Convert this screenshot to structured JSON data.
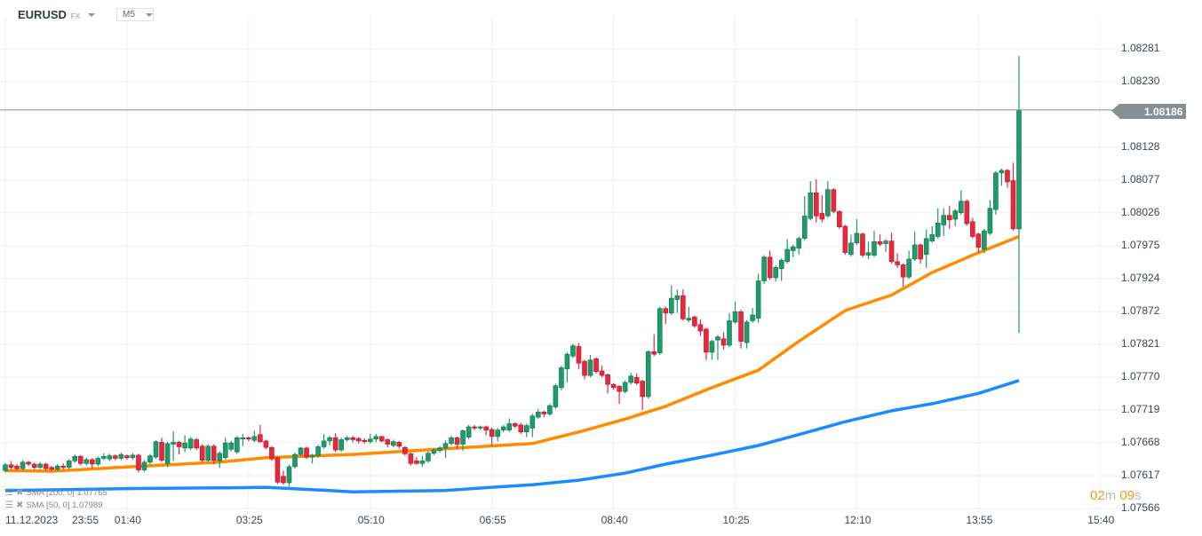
{
  "header": {
    "symbol": "EURUSD",
    "market": "FX",
    "timeframe": "M5"
  },
  "legend": [
    {
      "label": "SMA [200,  0] 1.07765"
    },
    {
      "label": "SMA [50,  0] 1.07989"
    }
  ],
  "timer": {
    "minutes": "02",
    "m": "m",
    "seconds": "09",
    "s": "s"
  },
  "colors": {
    "up": "#1e9b6a",
    "down": "#e8283d",
    "sma50": "#ff8c00",
    "sma200": "#1a8cff",
    "grid": "#eef0f2",
    "price_line": "#878f93"
  },
  "chart_data": {
    "type": "candlestick",
    "title": "EURUSD FX M5",
    "current_price": "1.08186",
    "ylim": [
      1.07566,
      1.08281
    ],
    "yticks": [
      "1.08281",
      "1.08230",
      "1.08128",
      "1.08077",
      "1.08026",
      "1.07975",
      "1.07924",
      "1.07872",
      "1.07821",
      "1.07770",
      "1.07719",
      "1.07668",
      "1.07617",
      "1.07566"
    ],
    "xticks": [
      {
        "bar": 0,
        "date": "11.12.2023",
        "label": "23:55"
      },
      {
        "bar": 21,
        "label": "01:40"
      },
      {
        "bar": 42,
        "label": "03:25"
      },
      {
        "bar": 63,
        "label": "05:10"
      },
      {
        "bar": 84,
        "label": "06:55"
      },
      {
        "bar": 105,
        "label": "08:40"
      },
      {
        "bar": 126,
        "label": "10:25"
      },
      {
        "bar": 147,
        "label": "12:10"
      },
      {
        "bar": 168,
        "label": "13:55"
      },
      {
        "bar": 189,
        "label": "15:40"
      }
    ],
    "ohlc": [
      [
        1.07625,
        1.07637,
        1.07622,
        1.07634
      ],
      [
        1.07634,
        1.0764,
        1.07627,
        1.0763
      ],
      [
        1.07632,
        1.07635,
        1.07625,
        1.07628
      ],
      [
        1.07628,
        1.07641,
        1.07625,
        1.07638
      ],
      [
        1.07638,
        1.0764,
        1.07632,
        1.07635
      ],
      [
        1.07635,
        1.07637,
        1.07627,
        1.0763
      ],
      [
        1.0763,
        1.07638,
        1.07627,
        1.07635
      ],
      [
        1.07635,
        1.07637,
        1.07625,
        1.07628
      ],
      [
        1.0763,
        1.07632,
        1.07624,
        1.07627
      ],
      [
        1.07627,
        1.07635,
        1.07624,
        1.07632
      ],
      [
        1.07632,
        1.07636,
        1.07627,
        1.0763
      ],
      [
        1.0763,
        1.07643,
        1.07627,
        1.0764
      ],
      [
        1.0764,
        1.0765,
        1.07637,
        1.07647
      ],
      [
        1.07647,
        1.07649,
        1.07633,
        1.07636
      ],
      [
        1.07636,
        1.07645,
        1.07633,
        1.07642
      ],
      [
        1.07642,
        1.07644,
        1.07628,
        1.07635
      ],
      [
        1.07635,
        1.07647,
        1.07632,
        1.07644
      ],
      [
        1.07644,
        1.07652,
        1.07641,
        1.07647
      ],
      [
        1.07643,
        1.07651,
        1.0764,
        1.07648
      ],
      [
        1.07648,
        1.0765,
        1.07641,
        1.07644
      ],
      [
        1.07644,
        1.07653,
        1.07641,
        1.0765
      ],
      [
        1.07648,
        1.0765,
        1.07642,
        1.07645
      ],
      [
        1.07645,
        1.07652,
        1.07642,
        1.07649
      ],
      [
        1.07649,
        1.07651,
        1.07622,
        1.07626
      ],
      [
        1.07626,
        1.07641,
        1.07623,
        1.07638
      ],
      [
        1.07638,
        1.07651,
        1.07635,
        1.07648
      ],
      [
        1.07646,
        1.07672,
        1.07643,
        1.0767
      ],
      [
        1.07669,
        1.07676,
        1.07638,
        1.07641
      ],
      [
        1.07636,
        1.0767,
        1.0763,
        1.07667
      ],
      [
        1.07666,
        1.07686,
        1.0764,
        1.07669
      ],
      [
        1.07669,
        1.07671,
        1.0765,
        1.07662
      ],
      [
        1.0766,
        1.0768,
        1.07654,
        1.07668
      ],
      [
        1.0766,
        1.07677,
        1.07657,
        1.07674
      ],
      [
        1.07673,
        1.07676,
        1.07657,
        1.0766
      ],
      [
        1.07663,
        1.07666,
        1.07638,
        1.07641
      ],
      [
        1.07641,
        1.07666,
        1.07638,
        1.07663
      ],
      [
        1.07663,
        1.07666,
        1.07635,
        1.07641
      ],
      [
        1.0764,
        1.07655,
        1.07629,
        1.07652
      ],
      [
        1.07645,
        1.07676,
        1.07642,
        1.07668
      ],
      [
        1.07658,
        1.07671,
        1.07655,
        1.07668
      ],
      [
        1.07654,
        1.07679,
        1.07651,
        1.07676
      ],
      [
        1.07674,
        1.07682,
        1.07663,
        1.07676
      ],
      [
        1.07676,
        1.07678,
        1.07671,
        1.07674
      ],
      [
        1.07672,
        1.07687,
        1.07669,
        1.07678
      ],
      [
        1.07681,
        1.07696,
        1.07668,
        1.0767
      ],
      [
        1.07671,
        1.07673,
        1.07658,
        1.07661
      ],
      [
        1.07661,
        1.07663,
        1.0764,
        1.07643
      ],
      [
        1.07645,
        1.07647,
        1.07604,
        1.07607
      ],
      [
        1.07616,
        1.07625,
        1.07603,
        1.07606
      ],
      [
        1.07606,
        1.07634,
        1.076,
        1.07631
      ],
      [
        1.07631,
        1.07653,
        1.07628,
        1.0765
      ],
      [
        1.0765,
        1.07662,
        1.07647,
        1.0766
      ],
      [
        1.0766,
        1.07662,
        1.07643,
        1.07646
      ],
      [
        1.07646,
        1.07651,
        1.07636,
        1.07648
      ],
      [
        1.07648,
        1.07665,
        1.07645,
        1.07662
      ],
      [
        1.07662,
        1.07682,
        1.07659,
        1.07671
      ],
      [
        1.07671,
        1.07679,
        1.07664,
        1.07676
      ],
      [
        1.07676,
        1.07683,
        1.07654,
        1.07657
      ],
      [
        1.07657,
        1.07676,
        1.07654,
        1.07673
      ],
      [
        1.07673,
        1.07679,
        1.0767,
        1.07676
      ],
      [
        1.07676,
        1.07679,
        1.07669,
        1.07673
      ],
      [
        1.07675,
        1.07677,
        1.07667,
        1.07671
      ],
      [
        1.07672,
        1.07675,
        1.07667,
        1.0767
      ],
      [
        1.0767,
        1.07682,
        1.07667,
        1.07674
      ],
      [
        1.07674,
        1.07682,
        1.07669,
        1.07678
      ],
      [
        1.07678,
        1.07679,
        1.07669,
        1.07671
      ],
      [
        1.07673,
        1.07675,
        1.07661,
        1.07666
      ],
      [
        1.07664,
        1.07673,
        1.07661,
        1.0767
      ],
      [
        1.07669,
        1.07671,
        1.07659,
        1.07663
      ],
      [
        1.07661,
        1.07663,
        1.07648,
        1.07651
      ],
      [
        1.07651,
        1.07653,
        1.07633,
        1.07636
      ],
      [
        1.0764,
        1.07646,
        1.07634,
        1.07636
      ],
      [
        1.07636,
        1.07648,
        1.07631,
        1.0764
      ],
      [
        1.0764,
        1.07655,
        1.07637,
        1.07652
      ],
      [
        1.07652,
        1.0766,
        1.07649,
        1.07657
      ],
      [
        1.07656,
        1.07663,
        1.07653,
        1.0766
      ],
      [
        1.0766,
        1.07672,
        1.07645,
        1.07667
      ],
      [
        1.07667,
        1.07679,
        1.07664,
        1.07676
      ],
      [
        1.07676,
        1.07678,
        1.07658,
        1.07666
      ],
      [
        1.07666,
        1.07689,
        1.07656,
        1.07687
      ],
      [
        1.07677,
        1.07696,
        1.07674,
        1.07693
      ],
      [
        1.07693,
        1.07696,
        1.07688,
        1.07691
      ],
      [
        1.07691,
        1.07695,
        1.07688,
        1.07693
      ],
      [
        1.07693,
        1.07695,
        1.0768,
        1.07688
      ],
      [
        1.07689,
        1.07692,
        1.07663,
        1.07678
      ],
      [
        1.07678,
        1.07691,
        1.0767,
        1.07688
      ],
      [
        1.07688,
        1.07696,
        1.07685,
        1.07693
      ],
      [
        1.07688,
        1.07706,
        1.07685,
        1.07698
      ],
      [
        1.07698,
        1.077,
        1.07691,
        1.07694
      ],
      [
        1.07696,
        1.07699,
        1.07682,
        1.07685
      ],
      [
        1.07685,
        1.07698,
        1.07677,
        1.07695
      ],
      [
        1.07691,
        1.07713,
        1.07677,
        1.0771
      ],
      [
        1.07708,
        1.07721,
        1.07705,
        1.07716
      ],
      [
        1.07716,
        1.07718,
        1.07708,
        1.07713
      ],
      [
        1.07713,
        1.07729,
        1.0771,
        1.07726
      ],
      [
        1.07724,
        1.0776,
        1.07721,
        1.07757
      ],
      [
        1.07754,
        1.07788,
        1.0775,
        1.07785
      ],
      [
        1.07783,
        1.07809,
        1.07762,
        1.07806
      ],
      [
        1.07803,
        1.07822,
        1.078,
        1.07819
      ],
      [
        1.07818,
        1.07823,
        1.07783,
        1.07792
      ],
      [
        1.07795,
        1.07797,
        1.07767,
        1.07773
      ],
      [
        1.07773,
        1.07805,
        1.0777,
        1.07797
      ],
      [
        1.07799,
        1.07801,
        1.07776,
        1.07779
      ],
      [
        1.0778,
        1.07788,
        1.0777,
        1.07773
      ],
      [
        1.07774,
        1.07776,
        1.07745,
        1.07759
      ],
      [
        1.07759,
        1.07761,
        1.07751,
        1.07754
      ],
      [
        1.07756,
        1.07758,
        1.07729,
        1.07748
      ],
      [
        1.07748,
        1.07765,
        1.07745,
        1.07762
      ],
      [
        1.07762,
        1.07777,
        1.07759,
        1.07772
      ],
      [
        1.0777,
        1.07776,
        1.07758,
        1.07761
      ],
      [
        1.07764,
        1.07766,
        1.07719,
        1.0774
      ],
      [
        1.0774,
        1.07812,
        1.07737,
        1.0781
      ],
      [
        1.0781,
        1.07837,
        1.07803,
        1.07806
      ],
      [
        1.07808,
        1.0788,
        1.07805,
        1.07877
      ],
      [
        1.07877,
        1.0788,
        1.07853,
        1.0787
      ],
      [
        1.0787,
        1.07913,
        1.07867,
        1.07893
      ],
      [
        1.07891,
        1.07906,
        1.0787,
        1.07897
      ],
      [
        1.07897,
        1.07907,
        1.07858,
        1.07861
      ],
      [
        1.07859,
        1.0788,
        1.07856,
        1.07862
      ],
      [
        1.07864,
        1.07866,
        1.07847,
        1.0785
      ],
      [
        1.07852,
        1.0786,
        1.07834,
        1.07842
      ],
      [
        1.07845,
        1.07847,
        1.07797,
        1.07809
      ],
      [
        1.07809,
        1.07829,
        1.07797,
        1.07826
      ],
      [
        1.07828,
        1.07836,
        1.07797,
        1.07833
      ],
      [
        1.0783,
        1.0784,
        1.07813,
        1.0782
      ],
      [
        1.0782,
        1.0787,
        1.07817,
        1.07858
      ],
      [
        1.07856,
        1.07888,
        1.07853,
        1.07872
      ],
      [
        1.07872,
        1.07875,
        1.07815,
        1.07826
      ],
      [
        1.07824,
        1.07859,
        1.07815,
        1.07856
      ],
      [
        1.07858,
        1.07878,
        1.07855,
        1.07867
      ],
      [
        1.07862,
        1.07931,
        1.07855,
        1.0792
      ],
      [
        1.0792,
        1.0796,
        1.07915,
        1.07957
      ],
      [
        1.07957,
        1.07967,
        1.07922,
        1.07925
      ],
      [
        1.07925,
        1.07944,
        1.07919,
        1.07941
      ],
      [
        1.07939,
        1.07955,
        1.0792,
        1.07952
      ],
      [
        1.0795,
        1.07985,
        1.07947,
        1.07969
      ],
      [
        1.07967,
        1.07976,
        1.07957,
        1.07973
      ],
      [
        1.07971,
        1.07989,
        1.07961,
        1.07986
      ],
      [
        1.07986,
        1.08052,
        1.07983,
        1.08021
      ],
      [
        1.08017,
        1.08075,
        1.08014,
        1.08057
      ],
      [
        1.08057,
        1.08078,
        1.08011,
        1.08021
      ],
      [
        1.08025,
        1.08053,
        1.08011,
        1.08016
      ],
      [
        1.08021,
        1.08075,
        1.08018,
        1.08062
      ],
      [
        1.08062,
        1.08064,
        1.08025,
        1.08028
      ],
      [
        1.08028,
        1.0803,
        1.08001,
        1.08004
      ],
      [
        1.08005,
        1.08007,
        1.07961,
        1.07964
      ],
      [
        1.07961,
        1.07992,
        1.07958,
        1.07979
      ],
      [
        1.07979,
        1.08016,
        1.07976,
        1.07994
      ],
      [
        1.07993,
        1.07995,
        1.07957,
        1.0796
      ],
      [
        1.0796,
        1.07981,
        1.07954,
        1.07964
      ],
      [
        1.0796,
        1.07998,
        1.07957,
        1.07981
      ],
      [
        1.07981,
        1.07992,
        1.07974,
        1.07977
      ],
      [
        1.07978,
        1.07985,
        1.07965,
        1.07982
      ],
      [
        1.07982,
        1.07995,
        1.07947,
        1.0795
      ],
      [
        1.0795,
        1.07963,
        1.0794,
        1.07945
      ],
      [
        1.07945,
        1.07947,
        1.07911,
        1.07926
      ],
      [
        1.07926,
        1.07967,
        1.07923,
        1.07954
      ],
      [
        1.07954,
        1.07997,
        1.07951,
        1.07976
      ],
      [
        1.07976,
        1.07978,
        1.07947,
        1.07954
      ],
      [
        1.07961,
        1.08,
        1.0794,
        1.07986
      ],
      [
        1.07982,
        1.08005,
        1.07979,
        1.07992
      ],
      [
        1.07989,
        1.08033,
        1.07986,
        1.0801
      ],
      [
        1.08007,
        1.08033,
        1.0799,
        1.08022
      ],
      [
        1.08022,
        1.08037,
        1.08001,
        1.08015
      ],
      [
        1.08016,
        1.08032,
        1.08005,
        1.08029
      ],
      [
        1.08026,
        1.08061,
        1.08023,
        1.08044
      ],
      [
        1.08044,
        1.08046,
        1.08006,
        1.08009
      ],
      [
        1.08012,
        1.08018,
        1.07986,
        1.07989
      ],
      [
        1.07993,
        1.07995,
        1.07963,
        1.07972
      ],
      [
        1.07969,
        1.08001,
        1.07963,
        1.07998
      ],
      [
        1.07994,
        1.08046,
        1.07991,
        1.08033
      ],
      [
        1.08031,
        1.08091,
        1.08023,
        1.08088
      ],
      [
        1.08088,
        1.08095,
        1.08068,
        1.08092
      ],
      [
        1.08092,
        1.08094,
        1.08065,
        1.08074
      ],
      [
        1.08076,
        1.08104,
        1.07998,
        1.08001
      ],
      [
        1.08001,
        1.0827,
        1.07839,
        1.08186
      ]
    ],
    "series": [
      {
        "name": "SMA 50",
        "last": 1.07989,
        "points": [
          [
            0,
            1.07625
          ],
          [
            8,
            1.07624
          ],
          [
            22,
            1.07631
          ],
          [
            37,
            1.07638
          ],
          [
            45,
            1.07645
          ],
          [
            60,
            1.0765
          ],
          [
            76,
            1.07659
          ],
          [
            91,
            1.07667
          ],
          [
            99,
            1.07685
          ],
          [
            107,
            1.07705
          ],
          [
            114,
            1.07725
          ],
          [
            122,
            1.07754
          ],
          [
            130,
            1.07781
          ],
          [
            137,
            1.07826
          ],
          [
            145,
            1.07874
          ],
          [
            153,
            1.07898
          ],
          [
            160,
            1.07933
          ],
          [
            168,
            1.07964
          ],
          [
            175,
            1.07989
          ]
        ]
      },
      {
        "name": "SMA 200",
        "last": 1.07765,
        "points": [
          [
            0,
            1.07594
          ],
          [
            22,
            1.07597
          ],
          [
            37,
            1.07598
          ],
          [
            45,
            1.07599
          ],
          [
            60,
            1.07592
          ],
          [
            76,
            1.07594
          ],
          [
            84,
            1.07599
          ],
          [
            91,
            1.07603
          ],
          [
            99,
            1.0761
          ],
          [
            107,
            1.07621
          ],
          [
            114,
            1.07635
          ],
          [
            122,
            1.07649
          ],
          [
            130,
            1.07664
          ],
          [
            137,
            1.07681
          ],
          [
            145,
            1.07701
          ],
          [
            153,
            1.07718
          ],
          [
            160,
            1.07729
          ],
          [
            168,
            1.07745
          ],
          [
            175,
            1.07765
          ]
        ]
      }
    ]
  }
}
